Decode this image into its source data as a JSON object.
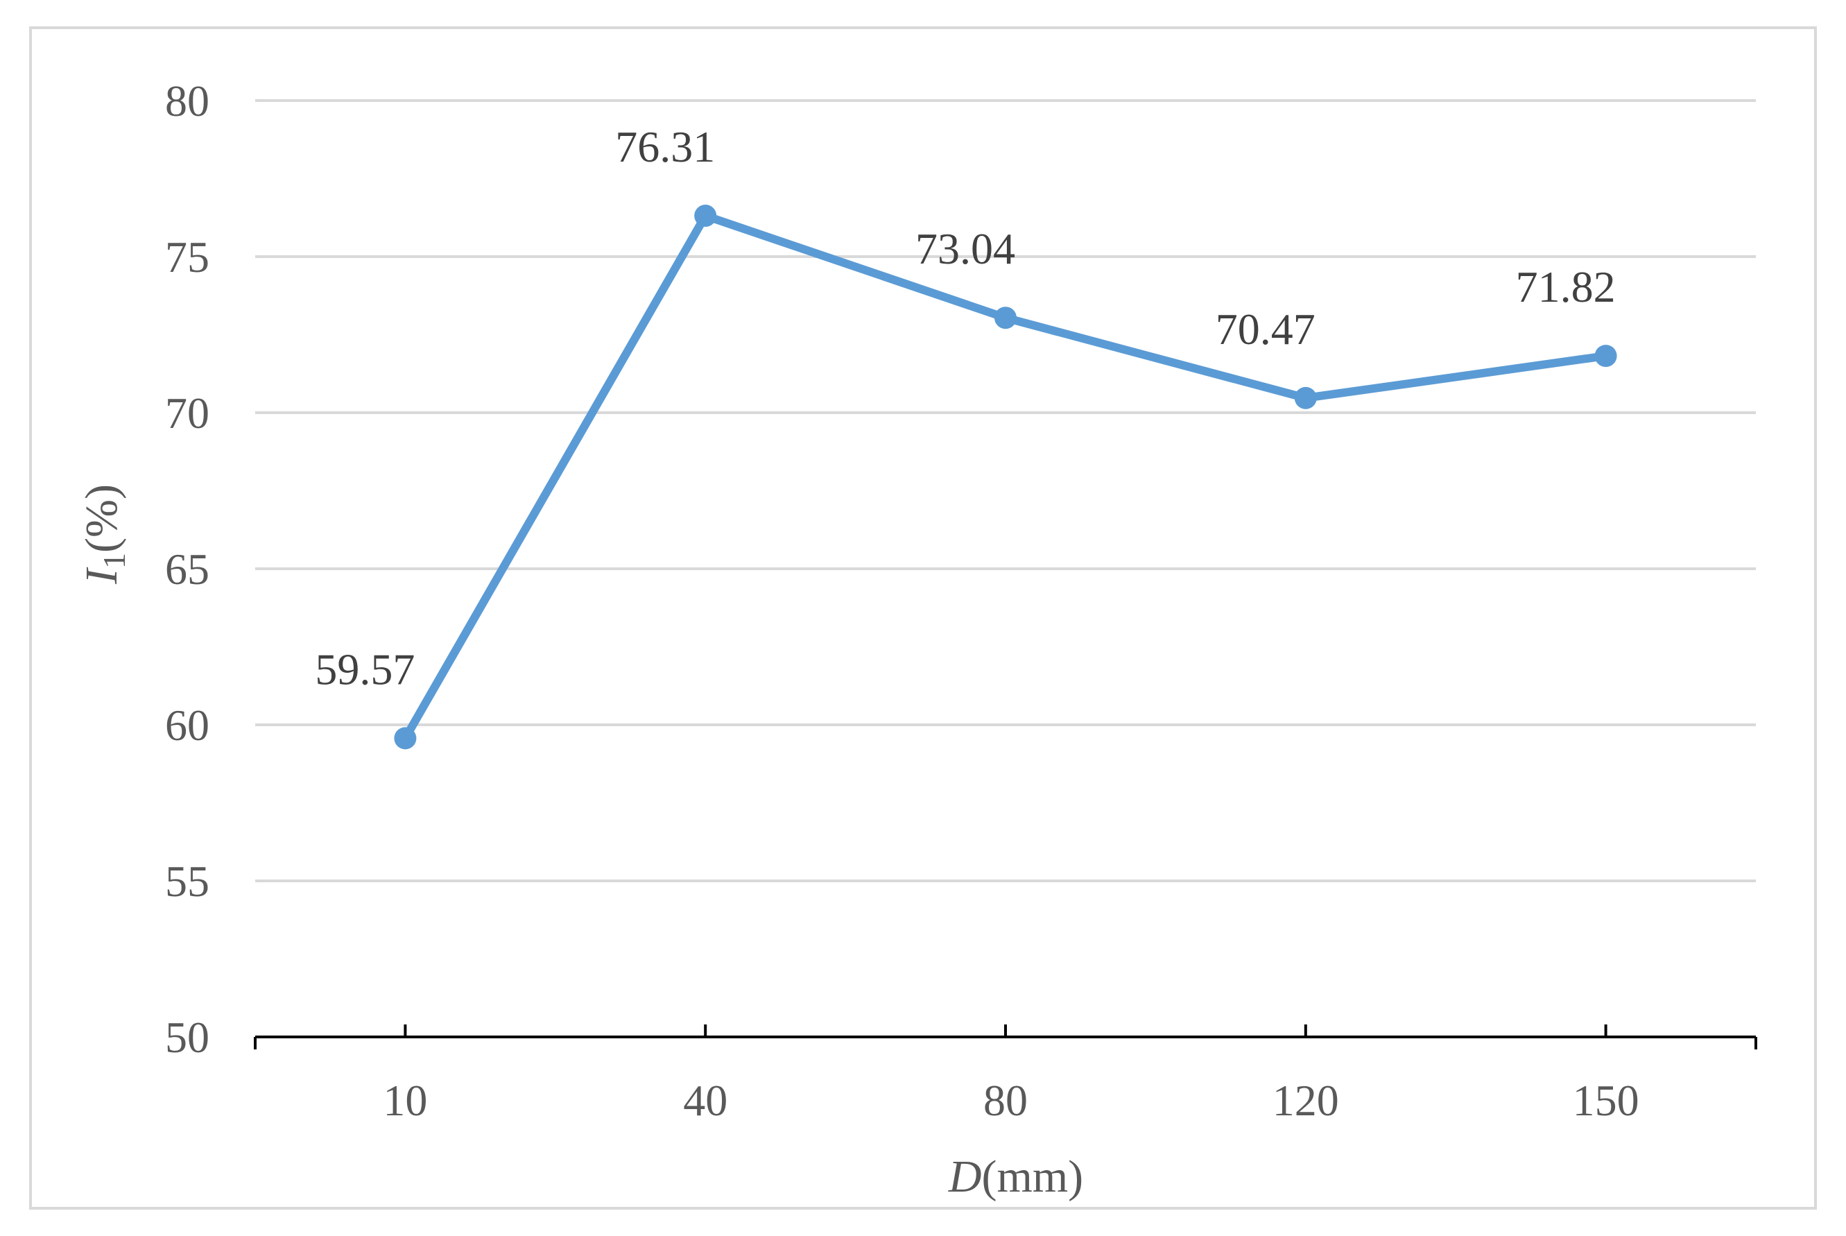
{
  "chart_data": {
    "type": "line",
    "categories": [
      "10",
      "40",
      "80",
      "120",
      "150"
    ],
    "series": [
      {
        "values": [
          59.57,
          76.31,
          73.04,
          70.47,
          71.82
        ],
        "data_labels": [
          "59.57",
          "76.31",
          "73.04",
          "70.47",
          "71.82"
        ],
        "color": "#5b9bd5"
      }
    ],
    "xlabel": {
      "italic": "D",
      "rest": "(mm)"
    },
    "ylabel": {
      "italic": "I",
      "sub": "1",
      "rest": "(%)"
    },
    "ylim": [
      50,
      80
    ],
    "yticks": [
      "50",
      "55",
      "60",
      "65",
      "70",
      "75",
      "80"
    ],
    "grid": true,
    "grid_color": "#d9d9d9",
    "axis_color": "#000000",
    "legend": "none"
  }
}
